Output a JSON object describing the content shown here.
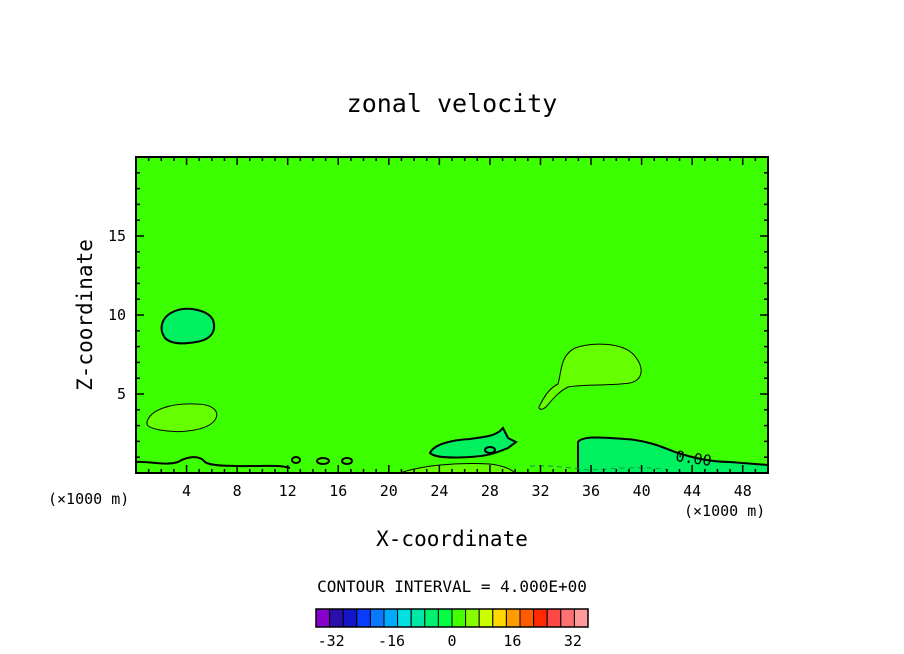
{
  "chart_data": {
    "type": "contour",
    "title": "zonal velocity",
    "xlabel": "X-coordinate",
    "ylabel": "Z-coordinate",
    "x_unit": "(×1000 m)",
    "xlim": [
      0,
      50
    ],
    "ylim": [
      0,
      20
    ],
    "x_ticks": [
      4,
      8,
      12,
      16,
      20,
      24,
      28,
      32,
      36,
      40,
      44,
      48
    ],
    "y_ticks": [
      5,
      10,
      15
    ],
    "contour_interval_text": "CONTOUR INTERVAL = 4.000E+00",
    "contour_label": "0.00",
    "colorbar": {
      "min": -36,
      "max": 36,
      "step": 4,
      "tick_values": [
        -32,
        -16,
        0,
        16,
        32
      ],
      "tick_labels": [
        "-32",
        "-16",
        "0",
        "16",
        "32"
      ],
      "colors": [
        "#8800cc",
        "#2a10a8",
        "#1414c8",
        "#0a3cff",
        "#0a78ff",
        "#00aaff",
        "#00e0e0",
        "#00e8a8",
        "#00f070",
        "#00ff40",
        "#44ff00",
        "#88ff00",
        "#ccff00",
        "#ffd800",
        "#ff9c00",
        "#ff5c00",
        "#ff2a00",
        "#ff4848",
        "#ff7070",
        "#ff9a9a"
      ]
    },
    "background_color": "#3cff00"
  }
}
